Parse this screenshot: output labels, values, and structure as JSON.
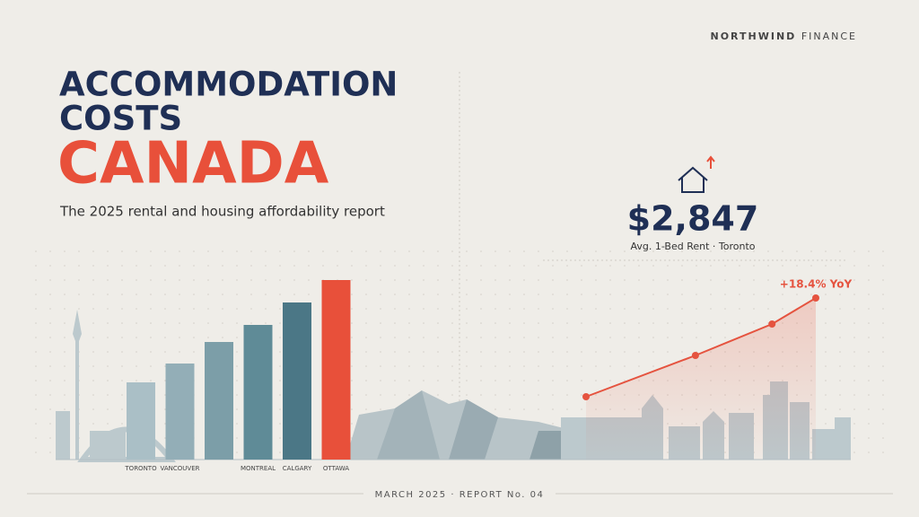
{
  "header": {
    "brand_bold": "NORTHWIND",
    "brand_light": "FINANCE",
    "title_line1": "ACCOMMODATION",
    "title_line2": "COSTS",
    "title_line3": "CANADA",
    "subtitle": "The 2025 rental and housing affordability report"
  },
  "stat": {
    "value": "$2,847",
    "caption": "Avg. 1-Bed Rent · Toronto"
  },
  "footer": "MARCH 2025 · REPORT No. 04",
  "chart_data": [
    {
      "type": "bar",
      "categories": [
        "TORONTO",
        "VANCOUVER",
        null,
        "MONTREAL",
        "CALGARY",
        "OTTAWA"
      ],
      "values": [
        86,
        107,
        131,
        150,
        175,
        200
      ],
      "colors": [
        "#aabfc6",
        "#93aeb7",
        "#7c9ea8",
        "#5f8b97",
        "#4b7786",
        "#e8503a"
      ],
      "ylim": [
        0,
        200
      ]
    },
    {
      "type": "line",
      "x": [
        0,
        10,
        17,
        21
      ],
      "xlim": [
        0,
        21
      ],
      "values": [
        70,
        116,
        151,
        180
      ],
      "color": "#e5533f",
      "ylim": [
        0,
        200
      ],
      "annotation": "+18.4% YoY"
    }
  ]
}
